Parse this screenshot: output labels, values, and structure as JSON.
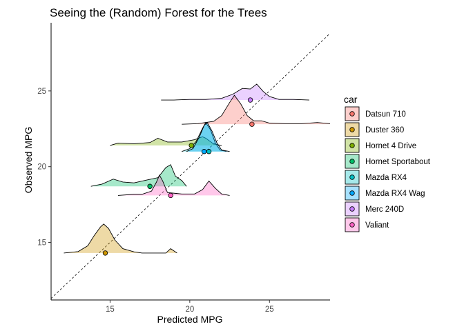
{
  "chart_data": {
    "type": "ridgeline",
    "title": "Seeing the (Random) Forest for the Trees",
    "xlabel": "Predicted MPG",
    "ylabel": "Observed MPG",
    "xlim": [
      11.3,
      28.8
    ],
    "ylim": [
      11.2,
      29.5
    ],
    "x_ticks": [
      15,
      20,
      25
    ],
    "y_ticks": [
      15,
      20,
      25
    ],
    "reference_line": "y = x",
    "grid": false,
    "legend": {
      "title": "car",
      "placement": "right",
      "entries": [
        "Datsun 710",
        "Duster 360",
        "Hornet 4 Drive",
        "Hornet Sportabout",
        "Mazda RX4",
        "Mazda RX4 Wag",
        "Merc 240D",
        "Valiant"
      ]
    },
    "series": [
      {
        "name": "Datsun 710",
        "observed": 22.8,
        "mean_predicted": 23.9,
        "color": "#F8766D",
        "density": [
          [
            19.5,
            0
          ],
          [
            20.5,
            0.02
          ],
          [
            21.5,
            0.1
          ],
          [
            22.0,
            0.3
          ],
          [
            22.5,
            0.75
          ],
          [
            22.8,
            1.0
          ],
          [
            23.2,
            0.7
          ],
          [
            23.6,
            0.3
          ],
          [
            24.0,
            0.12
          ],
          [
            24.5,
            0.12
          ],
          [
            25.0,
            0.04
          ],
          [
            26.0,
            0.02
          ],
          [
            27.0,
            0.02
          ],
          [
            28.0,
            0.06
          ],
          [
            28.8,
            0.02
          ]
        ]
      },
      {
        "name": "Duster 360",
        "observed": 14.3,
        "mean_predicted": 14.7,
        "color": "#CD9600",
        "density": [
          [
            12.1,
            0
          ],
          [
            13.0,
            0.05
          ],
          [
            13.6,
            0.25
          ],
          [
            14.0,
            0.6
          ],
          [
            14.4,
            0.9
          ],
          [
            14.6,
            1.0
          ],
          [
            14.9,
            0.85
          ],
          [
            15.3,
            0.45
          ],
          [
            15.8,
            0.15
          ],
          [
            16.5,
            0.04
          ],
          [
            17.0,
            0
          ],
          [
            18.5,
            0
          ],
          [
            18.8,
            0.15
          ],
          [
            19.2,
            0
          ]
        ]
      },
      {
        "name": "Hornet 4 Drive",
        "observed": 21.4,
        "mean_predicted": 20.1,
        "color": "#7CAE00",
        "density": [
          [
            15.0,
            0
          ],
          [
            15.5,
            0.08
          ],
          [
            16.5,
            0.06
          ],
          [
            17.5,
            0.1
          ],
          [
            18.0,
            0.25
          ],
          [
            18.6,
            0.12
          ],
          [
            19.5,
            0.12
          ],
          [
            20.3,
            0.2
          ],
          [
            20.8,
            0.3
          ],
          [
            21.0,
            0.25
          ],
          [
            21.5,
            0.05
          ],
          [
            22.0,
            0
          ]
        ]
      },
      {
        "name": "Hornet Sportabout",
        "observed": 18.7,
        "mean_predicted": 17.5,
        "color": "#00BE67",
        "density": [
          [
            13.8,
            0
          ],
          [
            14.5,
            0.08
          ],
          [
            15.2,
            0.25
          ],
          [
            15.8,
            0.15
          ],
          [
            16.5,
            0.12
          ],
          [
            17.3,
            0.22
          ],
          [
            18.0,
            0.3
          ],
          [
            18.5,
            0.65
          ],
          [
            18.8,
            0.75
          ],
          [
            19.1,
            0.35
          ],
          [
            19.5,
            0.2
          ],
          [
            19.8,
            0
          ]
        ]
      },
      {
        "name": "Mazda RX4",
        "observed": 21.0,
        "mean_predicted": 21.2,
        "color": "#00BFC4",
        "density": [
          [
            19.5,
            0
          ],
          [
            20.0,
            0.1
          ],
          [
            20.4,
            0.35
          ],
          [
            20.8,
            0.8
          ],
          [
            21.0,
            1.0
          ],
          [
            21.3,
            0.75
          ],
          [
            21.6,
            0.3
          ],
          [
            21.9,
            0.05
          ],
          [
            22.3,
            0
          ]
        ]
      },
      {
        "name": "Mazda RX4 Wag",
        "observed": 21.0,
        "mean_predicted": 20.9,
        "color": "#00A9FF",
        "density": [
          [
            19.8,
            0
          ],
          [
            20.2,
            0.1
          ],
          [
            20.6,
            0.5
          ],
          [
            20.9,
            0.9
          ],
          [
            21.1,
            1.0
          ],
          [
            21.4,
            0.7
          ],
          [
            21.7,
            0.3
          ],
          [
            22.0,
            0.05
          ],
          [
            22.5,
            0
          ]
        ]
      },
      {
        "name": "Merc 240D",
        "observed": 24.4,
        "mean_predicted": 23.8,
        "color": "#C77CFF",
        "density": [
          [
            18.2,
            0
          ],
          [
            19.0,
            0
          ],
          [
            20.0,
            0.02
          ],
          [
            21.0,
            0.02
          ],
          [
            22.0,
            0.06
          ],
          [
            22.7,
            0.2
          ],
          [
            23.3,
            0.4
          ],
          [
            23.8,
            0.38
          ],
          [
            24.2,
            0.55
          ],
          [
            24.6,
            0.3
          ],
          [
            25.0,
            0.12
          ],
          [
            25.6,
            0.02
          ],
          [
            26.5,
            0.02
          ],
          [
            27.5,
            0
          ]
        ]
      },
      {
        "name": "Valiant",
        "observed": 18.1,
        "mean_predicted": 18.8,
        "color": "#FF61C3",
        "density": [
          [
            15.5,
            0
          ],
          [
            16.5,
            0.04
          ],
          [
            17.0,
            0.04
          ],
          [
            17.6,
            0.15
          ],
          [
            17.9,
            0.45
          ],
          [
            18.1,
            0.7
          ],
          [
            18.3,
            0.5
          ],
          [
            18.6,
            0.1
          ],
          [
            19.5,
            0.05
          ],
          [
            20.3,
            0.05
          ],
          [
            20.8,
            0.2
          ],
          [
            21.2,
            0.5
          ],
          [
            21.6,
            0.25
          ],
          [
            22.0,
            0.05
          ],
          [
            22.5,
            0
          ]
        ]
      }
    ]
  }
}
